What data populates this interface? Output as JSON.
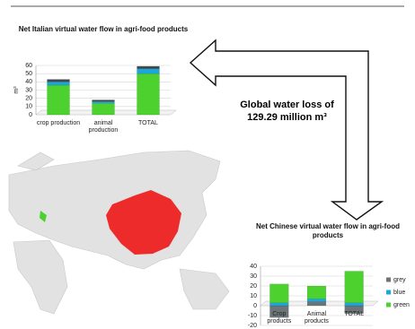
{
  "chart_data": [
    {
      "type": "bar",
      "title": "Net Italian virtual water flow in agri-food products",
      "y_label": "m³",
      "categories": [
        "crop production",
        "animal production",
        "TOTAL"
      ],
      "series": [
        {
          "color": "#4cd12e",
          "values": [
            36,
            14,
            50
          ]
        },
        {
          "color": "#1aa7dc",
          "values": [
            4,
            2,
            6
          ]
        },
        {
          "color": "#3f4a4f",
          "values": [
            3,
            2,
            3
          ]
        }
      ],
      "ylim": [
        0,
        60
      ],
      "yticks": [
        0,
        10,
        20,
        30,
        40,
        50,
        60
      ],
      "grid": true
    },
    {
      "type": "bar",
      "title": "Net Chinese virtual water flow in agri-food products",
      "categories": [
        "Crop products",
        "Animal products",
        "TOTAL"
      ],
      "series": [
        {
          "name": "grey",
          "color": "#6d7478",
          "values": [
            -12,
            4,
            -8
          ]
        },
        {
          "name": "blue",
          "color": "#1aa7dc",
          "values": [
            3,
            3,
            3
          ]
        },
        {
          "name": "green",
          "color": "#4cd12e",
          "values": [
            19,
            13,
            32
          ]
        }
      ],
      "ylim": [
        -20,
        40
      ],
      "yticks": [
        -20,
        -10,
        0,
        10,
        20,
        30,
        40
      ],
      "grid": true
    }
  ],
  "annotation": "Global water loss of 129.29 million m³"
}
